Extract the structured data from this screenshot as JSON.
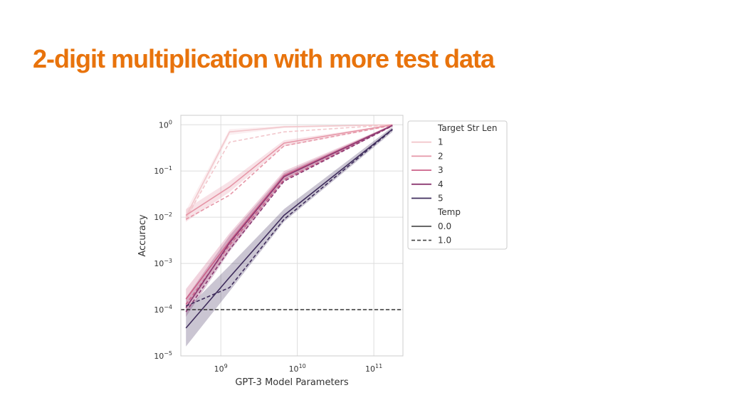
{
  "slide": {
    "title": "2-digit multiplication with more test data"
  },
  "colors": {
    "title": "#e8730c",
    "series": [
      "#f2c7cc",
      "#e697a8",
      "#cc6289",
      "#8c3a72",
      "#3f2d5c"
    ],
    "baseline": "#333333"
  },
  "chart_data": {
    "type": "line",
    "xlabel": "GPT-3 Model Parameters",
    "ylabel": "Accuracy",
    "xscale": "log",
    "yscale": "log",
    "xlim": [
      300000000.0,
      240000000000.0
    ],
    "ylim": [
      1e-05,
      1.6
    ],
    "grid": true,
    "x_ticks": [
      {
        "value": 1000000000.0,
        "base": "10",
        "exp": "9"
      },
      {
        "value": 10000000000.0,
        "base": "10",
        "exp": "10"
      },
      {
        "value": 100000000000.0,
        "base": "10",
        "exp": "11"
      }
    ],
    "y_ticks": [
      {
        "value": 1,
        "base": "10",
        "exp": "0"
      },
      {
        "value": 0.1,
        "base": "10",
        "exp": "−1"
      },
      {
        "value": 0.01,
        "base": "10",
        "exp": "−2"
      },
      {
        "value": 0.001,
        "base": "10",
        "exp": "−3"
      },
      {
        "value": 0.0001,
        "base": "10",
        "exp": "−4"
      },
      {
        "value": 1e-05,
        "base": "10",
        "exp": "−5"
      }
    ],
    "x": [
      350000000.0,
      1300000000.0,
      6700000000.0,
      175000000000.0
    ],
    "series": [
      {
        "name": "1",
        "temp": "0.0",
        "values": [
          0.0105,
          0.7,
          0.9,
          1.0
        ],
        "band": [
          [
            0.008,
            0.014
          ],
          [
            0.6,
            0.8
          ],
          [
            0.85,
            0.95
          ],
          [
            0.97,
            1.0
          ]
        ]
      },
      {
        "name": "1",
        "temp": "1.0",
        "values": [
          0.0095,
          0.42,
          0.7,
          1.0
        ]
      },
      {
        "name": "2",
        "temp": "0.0",
        "values": [
          0.011,
          0.045,
          0.4,
          1.0
        ],
        "band": [
          [
            0.008,
            0.015
          ],
          [
            0.035,
            0.06
          ],
          [
            0.34,
            0.46
          ],
          [
            0.95,
            1.0
          ]
        ]
      },
      {
        "name": "2",
        "temp": "1.0",
        "values": [
          0.009,
          0.03,
          0.35,
          0.97
        ]
      },
      {
        "name": "3",
        "temp": "0.0",
        "values": [
          0.00017,
          0.003,
          0.08,
          0.97
        ],
        "band": [
          [
            0.0001,
            0.00028
          ],
          [
            0.002,
            0.0045
          ],
          [
            0.065,
            0.1
          ],
          [
            0.92,
            1.0
          ]
        ]
      },
      {
        "name": "3",
        "temp": "1.0",
        "values": [
          0.00013,
          0.0025,
          0.065,
          0.95
        ]
      },
      {
        "name": "4",
        "temp": "0.0",
        "values": [
          0.00011,
          0.0028,
          0.075,
          0.97
        ],
        "band": [
          [
            7e-05,
            0.00018
          ],
          [
            0.0018,
            0.004
          ],
          [
            0.06,
            0.09
          ],
          [
            0.92,
            1.0
          ]
        ]
      },
      {
        "name": "4",
        "temp": "1.0",
        "values": [
          9e-05,
          0.002,
          0.06,
          0.95
        ]
      },
      {
        "name": "5",
        "temp": "0.0",
        "values": [
          4e-05,
          0.0005,
          0.011,
          0.8
        ],
        "band": [
          [
            1.6e-05,
            0.0001
          ],
          [
            0.00025,
            0.0009
          ],
          [
            0.008,
            0.015
          ],
          [
            0.7,
            0.9
          ]
        ]
      },
      {
        "name": "5",
        "temp": "1.0",
        "values": [
          0.00012,
          0.0003,
          0.009,
          0.78
        ]
      }
    ],
    "baseline": {
      "value": 0.0001,
      "style": "dashed"
    },
    "legend": {
      "position": "outside-right",
      "hue_title": "Target Str Len",
      "hue_labels": [
        "1",
        "2",
        "3",
        "4",
        "5"
      ],
      "style_title": "Temp",
      "style_labels": [
        "0.0",
        "1.0"
      ]
    }
  }
}
